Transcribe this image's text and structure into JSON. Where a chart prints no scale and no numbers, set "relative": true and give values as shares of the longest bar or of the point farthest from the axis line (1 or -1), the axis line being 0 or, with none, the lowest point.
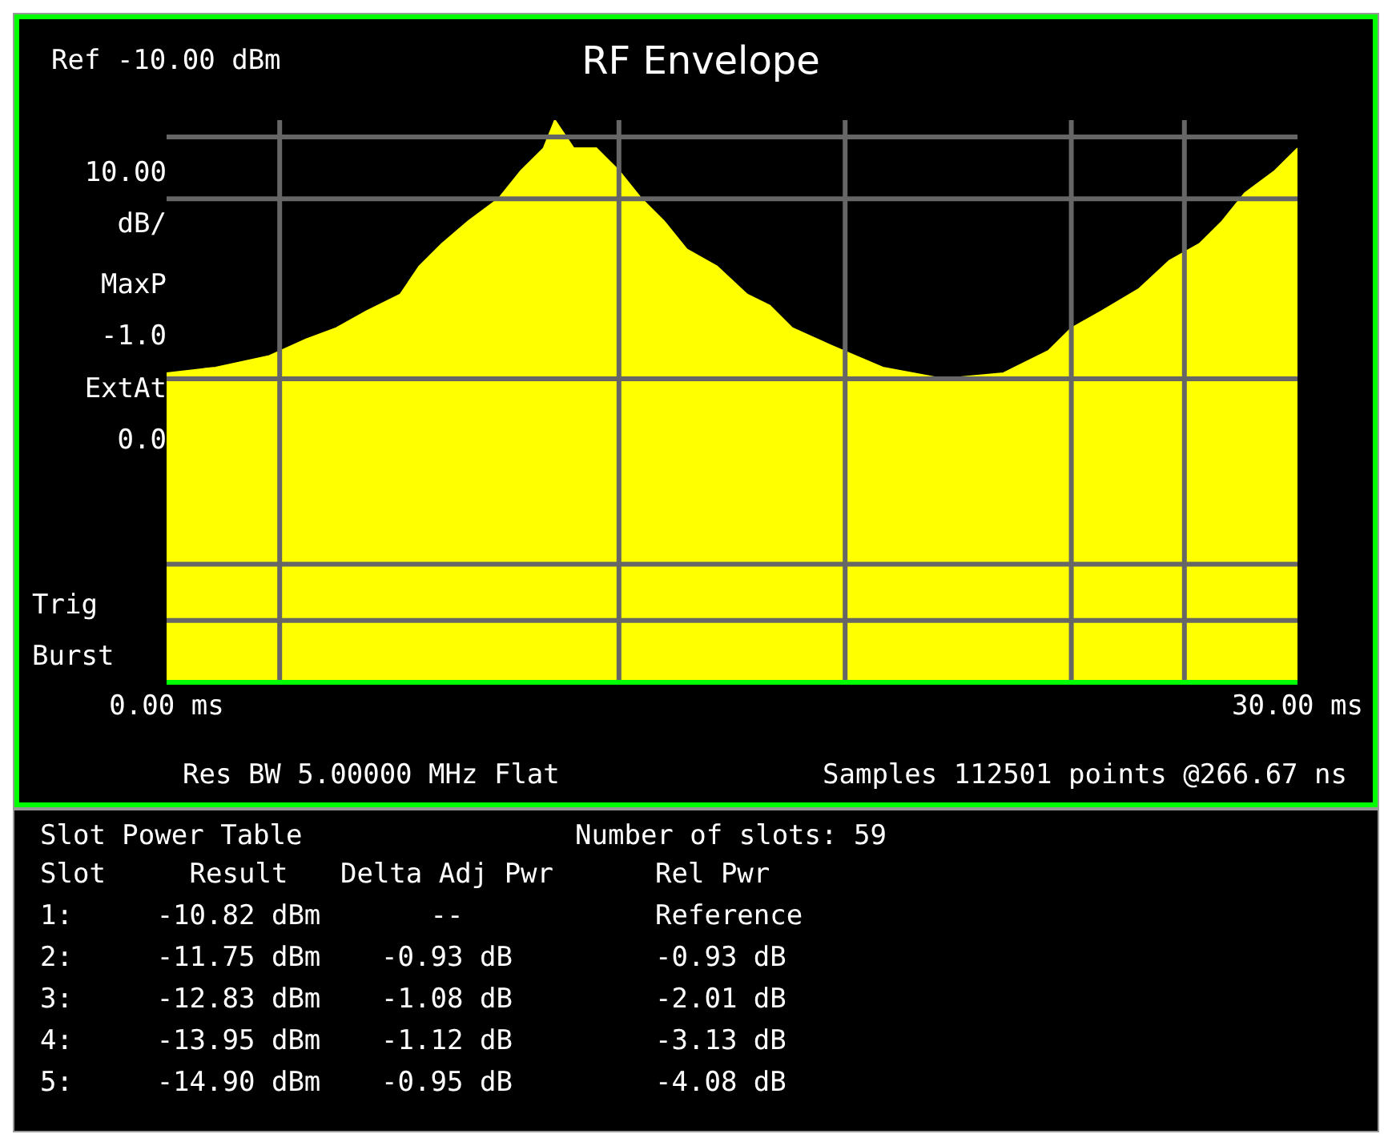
{
  "chart_data": {
    "type": "area",
    "title": "RF Envelope",
    "relative": true,
    "x": [
      0,
      1.3,
      2.7,
      3.7,
      4.5,
      5.3,
      6.2,
      6.7,
      7.3,
      8.0,
      8.8,
      9.4,
      10.0,
      10.3,
      10.8,
      11.4,
      12.0,
      12.6,
      13.2,
      13.8,
      14.6,
      15.4,
      16.0,
      16.6,
      17.6,
      19.0,
      20.6,
      22.2,
      23.4,
      24.0,
      24.8,
      25.8,
      26.6,
      27.4,
      28.0,
      28.6,
      29.4,
      30
    ],
    "series": [
      {
        "color": "#ffff00",
        "values": [
          0.55,
          0.56,
          0.58,
          0.61,
          0.63,
          0.66,
          0.69,
          0.74,
          0.78,
          0.82,
          0.86,
          0.91,
          0.95,
          1,
          0.95,
          0.95,
          0.91,
          0.86,
          0.82,
          0.77,
          0.74,
          0.69,
          0.67,
          0.63,
          0.6,
          0.56,
          0.54,
          0.55,
          0.59,
          0.63,
          0.66,
          0.7,
          0.75,
          0.78,
          0.82,
          0.87,
          0.91,
          0.95
        ]
      }
    ],
    "xlim": [
      0,
      30
    ],
    "xticks": [
      {
        "value": 0,
        "label": "0.00 ms"
      },
      {
        "value": 30,
        "label": "30.00 ms"
      }
    ],
    "tick_labels": "x",
    "grid": false,
    "legend": false,
    "ref_lines": [
      {
        "axis": "x",
        "value": 3,
        "color": "#666666"
      },
      {
        "axis": "x",
        "value": 12,
        "color": "#666666"
      },
      {
        "axis": "x",
        "value": 18,
        "color": "#666666"
      },
      {
        "axis": "x",
        "value": 24,
        "color": "#666666"
      },
      {
        "axis": "x",
        "value": 27,
        "color": "#666666"
      },
      {
        "axis": "y",
        "value": 0.11,
        "color": "#666666"
      },
      {
        "axis": "y",
        "value": 0.21,
        "color": "#666666"
      },
      {
        "axis": "y",
        "value": 0.54,
        "color": "#666666"
      },
      {
        "axis": "y",
        "value": 0.86,
        "color": "#666666"
      },
      {
        "axis": "y",
        "value": 0.97,
        "color": "#666666"
      }
    ],
    "annotations": [
      "Ref -10.00 dBm",
      "10.00 dB/",
      "MaxP -1.0",
      "ExtAt 0.0",
      "Trig Burst",
      "Res BW 5.00000 MHz Flat",
      "Samples 112501 points @266.67 ns",
      "Slot Power Table",
      "Number of slots: 59",
      "Slot",
      "Result",
      "Delta Adj Pwr",
      "Rel Pwr",
      "1:",
      "-10.82 dBm",
      "--",
      "Reference",
      "2:",
      "-11.75 dBm",
      "-0.93 dB",
      "-0.93 dB",
      "3:",
      "-12.83 dBm",
      "-1.08 dB",
      "-2.01 dB",
      "4:",
      "-13.95 dBm",
      "-1.12 dB",
      "-3.13 dB",
      "5:",
      "-14.90 dBm",
      "-0.95 dB",
      "-4.08 dB"
    ]
  }
}
